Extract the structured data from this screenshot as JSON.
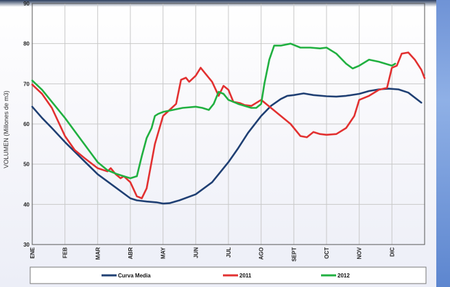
{
  "chart_data": {
    "type": "line",
    "ylabel": "VOLUMEN (Millones de m3)",
    "xlabel": "",
    "ylim": [
      30,
      90
    ],
    "yticks": [
      30,
      40,
      50,
      60,
      70,
      80,
      90
    ],
    "x_range": [
      0,
      12
    ],
    "month_labels": [
      "ENE",
      "FEB",
      "MAR",
      "ABR",
      "MAY",
      "JUN",
      "JUL",
      "AGO",
      "SEPT",
      "OCT",
      "NOV",
      "DIC"
    ],
    "grid": true,
    "legend_position": "bottom",
    "series": [
      {
        "name": "Curva Media",
        "color": "#1f3f73",
        "x": [
          0,
          0.3,
          0.6,
          1,
          1.5,
          2,
          2.5,
          3,
          3.2,
          3.5,
          3.8,
          4,
          4.2,
          4.5,
          5,
          5.5,
          6,
          6.3,
          6.6,
          7,
          7.3,
          7.6,
          7.8,
          8,
          8.3,
          8.6,
          9,
          9.3,
          9.6,
          10,
          10.3,
          10.6,
          10.9,
          11.2,
          11.5,
          11.9
        ],
        "y": [
          64.3,
          61.5,
          59,
          55.5,
          51.5,
          47.5,
          44.5,
          41.5,
          41,
          40.7,
          40.5,
          40.2,
          40.3,
          41,
          42.5,
          45.5,
          50.5,
          54,
          57.8,
          62,
          64.5,
          66.2,
          67,
          67.2,
          67.6,
          67.2,
          66.9,
          66.8,
          67,
          67.5,
          68.2,
          68.6,
          68.8,
          68.6,
          67.8,
          65.3
        ]
      },
      {
        "name": "2011",
        "color": "#e23030",
        "x": [
          0,
          0.3,
          0.6,
          1,
          1.3,
          1.6,
          2,
          2.3,
          2.4,
          2.55,
          2.7,
          2.8,
          3,
          3.2,
          3.35,
          3.5,
          3.75,
          4,
          4.2,
          4.4,
          4.55,
          4.7,
          4.8,
          5,
          5.15,
          5.3,
          5.5,
          5.7,
          5.85,
          6,
          6.15,
          6.35,
          6.5,
          6.7,
          7,
          7.3,
          7.6,
          7.9,
          8.2,
          8.4,
          8.6,
          8.8,
          9,
          9.3,
          9.6,
          9.85,
          10,
          10.3,
          10.6,
          10.85,
          11,
          11.15,
          11.3,
          11.5,
          11.7,
          11.9,
          12
        ],
        "y": [
          69.8,
          67.5,
          64,
          57,
          53.5,
          51.5,
          49,
          48.2,
          49,
          47.5,
          46.5,
          47,
          45.5,
          42,
          41.5,
          44,
          55,
          62,
          63.5,
          65,
          71,
          71.5,
          70.5,
          72,
          74,
          72.5,
          70.5,
          67,
          69.5,
          68.5,
          65.5,
          65.2,
          64.7,
          64.5,
          66,
          64,
          62,
          60,
          57,
          56.7,
          58,
          57.5,
          57.3,
          57.5,
          59,
          62,
          66,
          67,
          68.5,
          69,
          74,
          74.5,
          77.5,
          77.8,
          76,
          73.5,
          71.4
        ]
      },
      {
        "name": "2012",
        "color": "#20b040",
        "x": [
          0,
          0.3,
          0.6,
          1,
          1.5,
          2,
          2.3,
          2.6,
          3,
          3.2,
          3.35,
          3.5,
          3.65,
          3.75,
          3.85,
          4,
          4.3,
          4.6,
          5,
          5.2,
          5.4,
          5.55,
          5.7,
          5.85,
          6,
          6.15,
          6.3,
          6.5,
          6.7,
          6.85,
          7,
          7.1,
          7.25,
          7.4,
          7.6,
          7.9,
          8.2,
          8.5,
          8.8,
          9,
          9.3,
          9.6,
          9.8,
          10,
          10.3,
          10.6,
          10.8,
          11,
          11.1
        ],
        "y": [
          70.8,
          68.5,
          65.5,
          61.5,
          56,
          50.5,
          48.5,
          47.5,
          46.5,
          47,
          52,
          56.5,
          59,
          62,
          62.5,
          63,
          63.5,
          64,
          64.3,
          64,
          63.5,
          65,
          68,
          67.5,
          66,
          65.5,
          65,
          64.5,
          64,
          64,
          65,
          70,
          76,
          79.5,
          79.5,
          80,
          79,
          79,
          78.8,
          79,
          77.5,
          75,
          73.8,
          74.5,
          76,
          75.5,
          75,
          74.5,
          75
        ]
      }
    ]
  }
}
